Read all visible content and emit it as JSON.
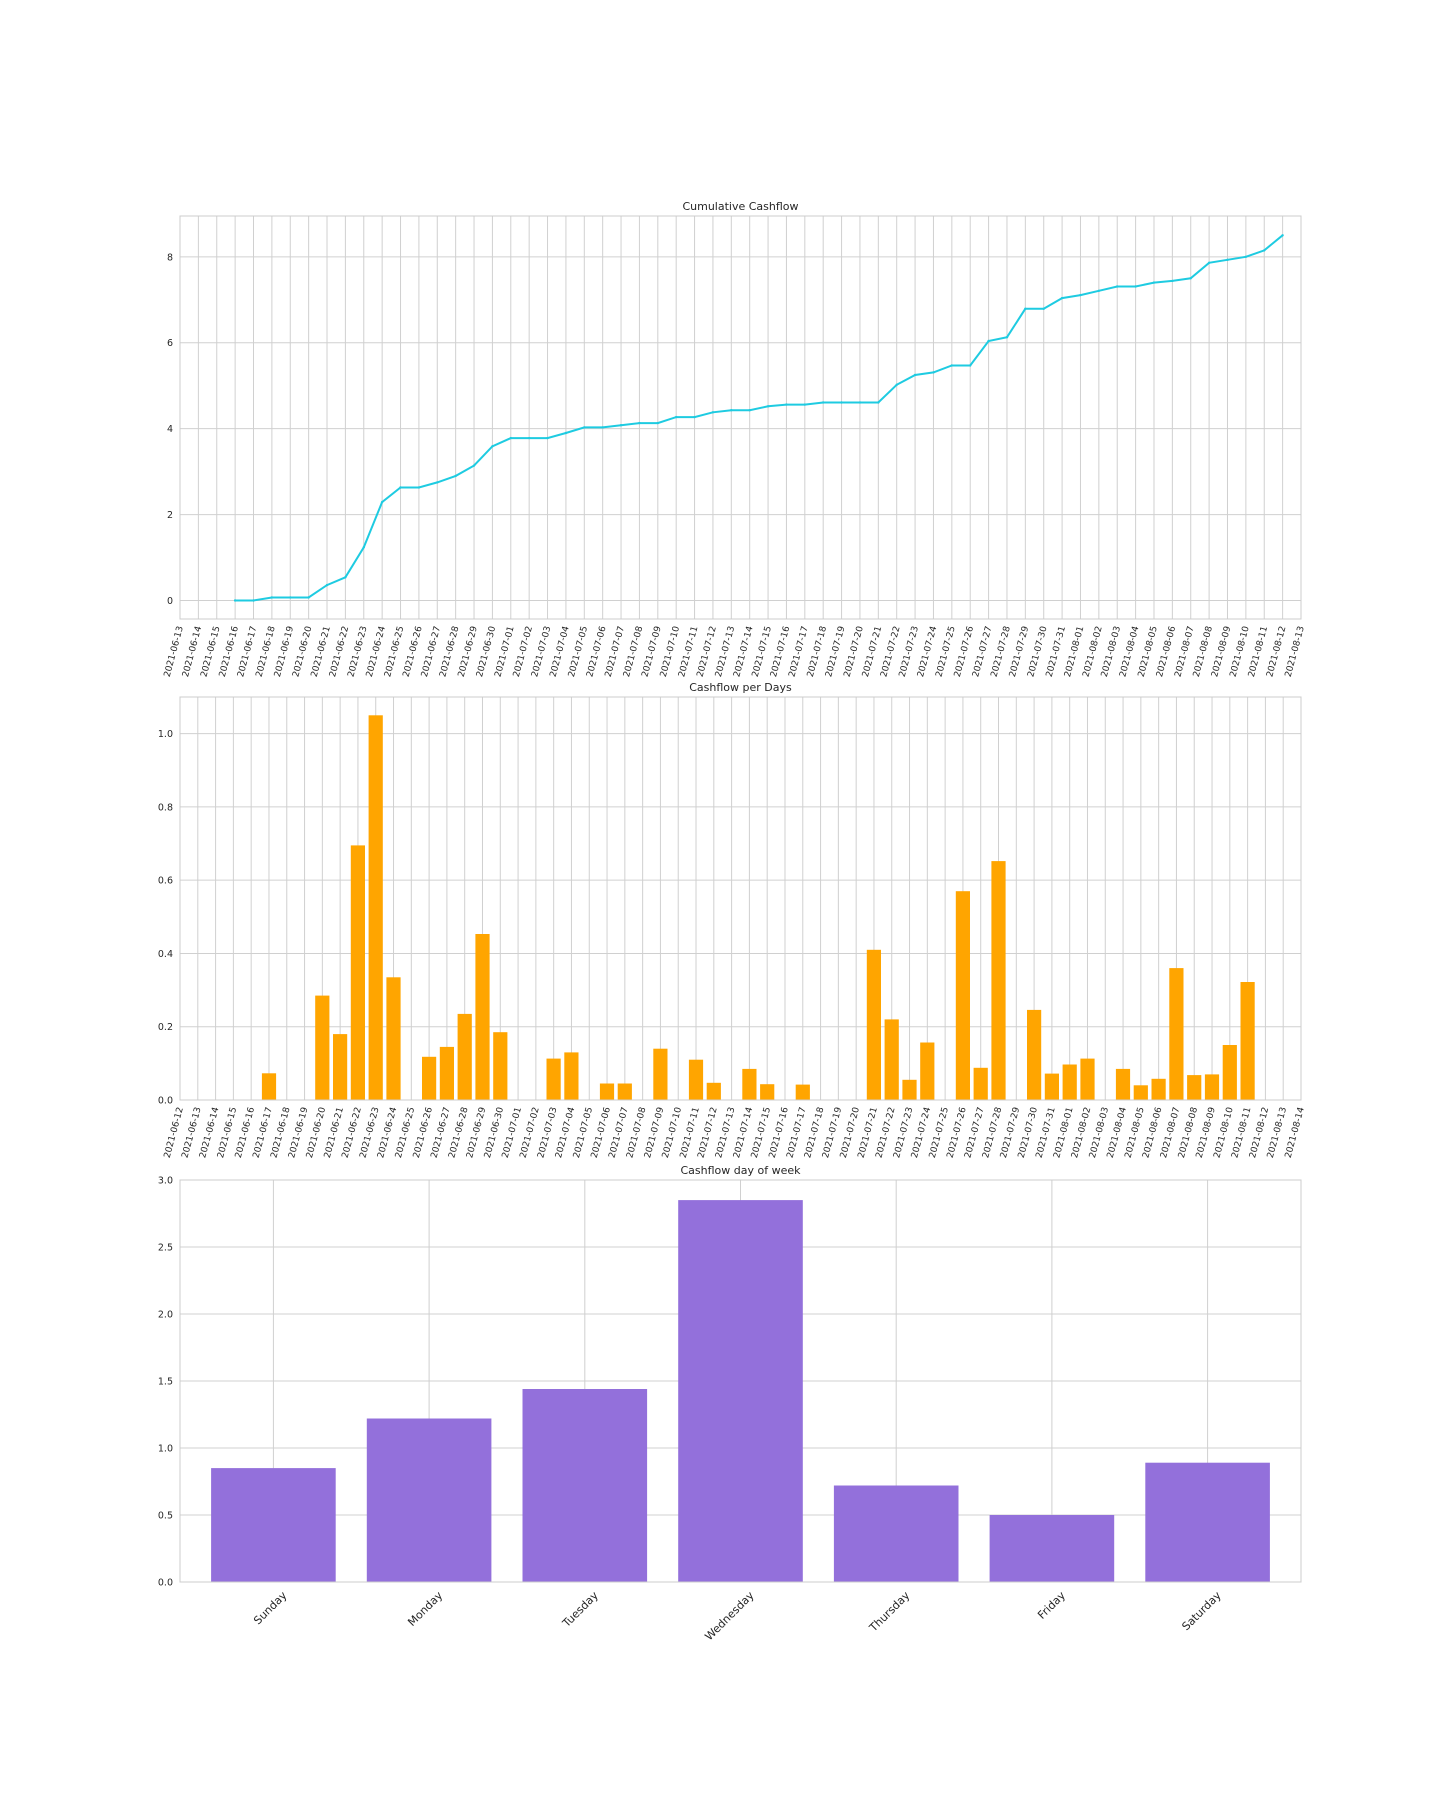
{
  "colors": {
    "line": "#1ecbe1",
    "bar_daily": "#ffa500",
    "bar_weekday": "#9370db",
    "grid": "#d0d0d0"
  },
  "chart_data": [
    {
      "type": "line",
      "title": "Cumulative Cashflow",
      "xlabel": "",
      "ylabel": "",
      "grid": true,
      "x_ticks": [
        "2021-06-13",
        "2021-06-14",
        "2021-06-15",
        "2021-06-16",
        "2021-06-17",
        "2021-06-18",
        "2021-06-19",
        "2021-06-20",
        "2021-06-21",
        "2021-06-22",
        "2021-06-23",
        "2021-06-24",
        "2021-06-25",
        "2021-06-26",
        "2021-06-27",
        "2021-06-28",
        "2021-06-29",
        "2021-06-30",
        "2021-07-01",
        "2021-07-02",
        "2021-07-03",
        "2021-07-04",
        "2021-07-05",
        "2021-07-06",
        "2021-07-07",
        "2021-07-08",
        "2021-07-09",
        "2021-07-10",
        "2021-07-11",
        "2021-07-12",
        "2021-07-13",
        "2021-07-14",
        "2021-07-15",
        "2021-07-16",
        "2021-07-17",
        "2021-07-18",
        "2021-07-19",
        "2021-07-20",
        "2021-07-21",
        "2021-07-22",
        "2021-07-23",
        "2021-07-24",
        "2021-07-25",
        "2021-07-26",
        "2021-07-27",
        "2021-07-28",
        "2021-07-29",
        "2021-07-30",
        "2021-07-31",
        "2021-08-01",
        "2021-08-02",
        "2021-08-03",
        "2021-08-04",
        "2021-08-05",
        "2021-08-06",
        "2021-08-07",
        "2021-08-08",
        "2021-08-09",
        "2021-08-10",
        "2021-08-11",
        "2021-08-12",
        "2021-08-13"
      ],
      "y_ticks": [
        0,
        2,
        4,
        6,
        8
      ],
      "xlim": [
        "2021-06-13",
        "2021-08-13"
      ],
      "ylim": [
        -0.43,
        8.95
      ],
      "x": [
        "2021-06-16",
        "2021-06-17",
        "2021-06-18",
        "2021-06-19",
        "2021-06-20",
        "2021-06-21",
        "2021-06-22",
        "2021-06-23",
        "2021-06-24",
        "2021-06-25",
        "2021-06-26",
        "2021-06-27",
        "2021-06-28",
        "2021-06-29",
        "2021-06-30",
        "2021-07-01",
        "2021-07-02",
        "2021-07-03",
        "2021-07-04",
        "2021-07-05",
        "2021-07-06",
        "2021-07-07",
        "2021-07-08",
        "2021-07-09",
        "2021-07-10",
        "2021-07-11",
        "2021-07-12",
        "2021-07-13",
        "2021-07-14",
        "2021-07-15",
        "2021-07-16",
        "2021-07-17",
        "2021-07-18",
        "2021-07-19",
        "2021-07-20",
        "2021-07-21",
        "2021-07-22",
        "2021-07-23",
        "2021-07-24",
        "2021-07-25",
        "2021-07-26",
        "2021-07-27",
        "2021-07-28",
        "2021-07-29",
        "2021-07-30",
        "2021-07-31",
        "2021-08-01",
        "2021-08-02",
        "2021-08-03",
        "2021-08-04",
        "2021-08-05",
        "2021-08-06",
        "2021-08-07",
        "2021-08-08",
        "2021-08-09",
        "2021-08-10",
        "2021-08-11",
        "2021-08-12"
      ],
      "y": [
        0.0,
        0.0,
        0.07,
        0.07,
        0.07,
        0.36,
        0.54,
        1.24,
        2.29,
        2.63,
        2.63,
        2.75,
        2.9,
        3.14,
        3.59,
        3.78,
        3.78,
        3.78,
        3.9,
        4.03,
        4.03,
        4.08,
        4.13,
        4.13,
        4.27,
        4.27,
        4.38,
        4.43,
        4.43,
        4.52,
        4.56,
        4.56,
        4.61,
        4.61,
        4.61,
        4.61,
        5.02,
        5.25,
        5.31,
        5.47,
        5.47,
        6.04,
        6.13,
        6.79,
        6.79,
        7.04,
        7.11,
        7.21,
        7.31,
        7.31,
        7.4,
        7.44,
        7.5,
        7.86,
        7.93,
        8.0,
        8.15,
        8.5
      ]
    },
    {
      "type": "bar",
      "title": "Cashflow per Days",
      "xlabel": "",
      "ylabel": "",
      "grid": true,
      "x_ticks": [
        "2021-06-12",
        "2021-06-13",
        "2021-06-14",
        "2021-06-15",
        "2021-06-16",
        "2021-06-17",
        "2021-06-18",
        "2021-06-19",
        "2021-06-20",
        "2021-06-21",
        "2021-06-22",
        "2021-06-23",
        "2021-06-24",
        "2021-06-25",
        "2021-06-26",
        "2021-06-27",
        "2021-06-28",
        "2021-06-29",
        "2021-06-30",
        "2021-07-01",
        "2021-07-02",
        "2021-07-03",
        "2021-07-04",
        "2021-07-05",
        "2021-07-06",
        "2021-07-07",
        "2021-07-08",
        "2021-07-09",
        "2021-07-10",
        "2021-07-11",
        "2021-07-12",
        "2021-07-13",
        "2021-07-14",
        "2021-07-15",
        "2021-07-16",
        "2021-07-17",
        "2021-07-18",
        "2021-07-19",
        "2021-07-20",
        "2021-07-21",
        "2021-07-22",
        "2021-07-23",
        "2021-07-24",
        "2021-07-25",
        "2021-07-26",
        "2021-07-27",
        "2021-07-28",
        "2021-07-29",
        "2021-07-30",
        "2021-07-31",
        "2021-08-01",
        "2021-08-02",
        "2021-08-03",
        "2021-08-04",
        "2021-08-05",
        "2021-08-06",
        "2021-08-07",
        "2021-08-08",
        "2021-08-09",
        "2021-08-10",
        "2021-08-11",
        "2021-08-12",
        "2021-08-13",
        "2021-08-14"
      ],
      "y_ticks": [
        0.0,
        0.2,
        0.4,
        0.6,
        0.8,
        1.0
      ],
      "xlim": [
        "2021-06-12",
        "2021-08-14"
      ],
      "ylim": [
        0,
        1.1
      ],
      "categories": [
        "2021-06-17",
        "2021-06-20",
        "2021-06-21",
        "2021-06-22",
        "2021-06-23",
        "2021-06-24",
        "2021-06-26",
        "2021-06-27",
        "2021-06-28",
        "2021-06-29",
        "2021-06-30",
        "2021-07-03",
        "2021-07-04",
        "2021-07-06",
        "2021-07-07",
        "2021-07-09",
        "2021-07-11",
        "2021-07-12",
        "2021-07-14",
        "2021-07-15",
        "2021-07-17",
        "2021-07-21",
        "2021-07-22",
        "2021-07-23",
        "2021-07-24",
        "2021-07-26",
        "2021-07-27",
        "2021-07-28",
        "2021-07-30",
        "2021-07-31",
        "2021-08-01",
        "2021-08-02",
        "2021-08-04",
        "2021-08-05",
        "2021-08-06",
        "2021-08-07",
        "2021-08-08",
        "2021-08-09",
        "2021-08-10",
        "2021-08-11"
      ],
      "values": [
        0.073,
        0.285,
        0.18,
        0.695,
        1.05,
        0.335,
        0.118,
        0.145,
        0.235,
        0.453,
        0.185,
        0.113,
        0.13,
        0.045,
        0.045,
        0.14,
        0.11,
        0.047,
        0.085,
        0.043,
        0.042,
        0.41,
        0.22,
        0.055,
        0.157,
        0.57,
        0.088,
        0.652,
        0.246,
        0.072,
        0.097,
        0.113,
        0.085,
        0.04,
        0.058,
        0.36,
        0.068,
        0.07,
        0.15,
        0.322
      ]
    },
    {
      "type": "bar",
      "title": "Cashflow day of week",
      "xlabel": "",
      "ylabel": "",
      "grid": true,
      "y_ticks": [
        0.0,
        0.5,
        1.0,
        1.5,
        2.0,
        2.5,
        3.0
      ],
      "ylim": [
        0,
        3.0
      ],
      "categories": [
        "Sunday",
        "Monday",
        "Tuesday",
        "Wednesday",
        "Thursday",
        "Friday",
        "Saturday"
      ],
      "values": [
        0.85,
        1.22,
        1.44,
        2.85,
        0.72,
        0.5,
        0.89
      ]
    }
  ]
}
